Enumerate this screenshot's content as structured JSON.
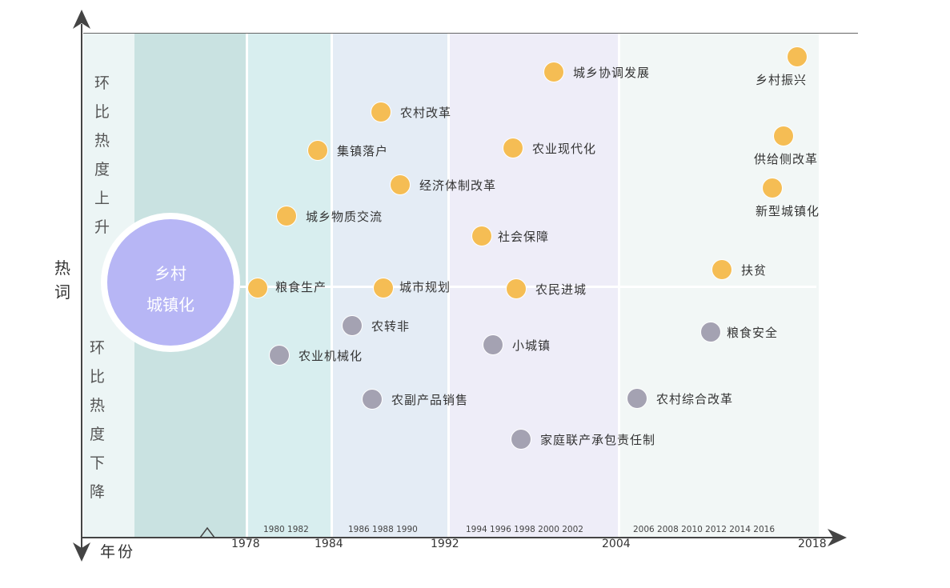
{
  "y_axis": {
    "upper_label": [
      "环",
      "比",
      "热",
      "度",
      "上",
      "升"
    ],
    "lower_label": [
      "环",
      "比",
      "热",
      "度",
      "下",
      "降"
    ],
    "name": [
      "热",
      "词"
    ]
  },
  "x_axis": {
    "name": "年份",
    "major_ticks": [
      "1978",
      "1984",
      "1992",
      "2004",
      "2018"
    ],
    "minor_ticks": [
      "1980 1982",
      "1986 1988 1990",
      "1994 1996 1998 2000 2002",
      "2006 2008 2010 2012 2014 2016"
    ]
  },
  "center_topic": [
    "乡村",
    "城镇化"
  ],
  "colors": {
    "rising": "#f5bd54",
    "falling": "#a4a2b2",
    "band_1": "#c9e2e1",
    "band_2": "#d8eeef",
    "band_3": "#e4ecf5",
    "band_4": "#eeedf8",
    "band_5": "#f2f7f6",
    "band_pre": "#ecf5f5"
  },
  "terms": {
    "rising": [
      {
        "id": "xcxtfz",
        "text": "城乡协调发展"
      },
      {
        "id": "xczx",
        "text": "乡村振兴"
      },
      {
        "id": "ncgg",
        "text": "农村改革"
      },
      {
        "id": "jzlh",
        "text": "集镇落户"
      },
      {
        "id": "nyxdh",
        "text": "农业现代化"
      },
      {
        "id": "gjcgg",
        "text": "供给侧改革"
      },
      {
        "id": "jjtzgg",
        "text": "经济体制改革"
      },
      {
        "id": "xxczh",
        "text": "新型城镇化"
      },
      {
        "id": "cxwzjl",
        "text": "城乡物质交流"
      },
      {
        "id": "shbz",
        "text": "社会保障"
      },
      {
        "id": "fp",
        "text": "扶贫"
      },
      {
        "id": "lssc",
        "text": "粮食生产"
      },
      {
        "id": "csgh",
        "text": "城市规划"
      },
      {
        "id": "nmjc",
        "text": "农民进城"
      }
    ],
    "falling": [
      {
        "id": "nzf",
        "text": "农转非"
      },
      {
        "id": "lsaq",
        "text": "粮食安全"
      },
      {
        "id": "xcz",
        "text": "小城镇"
      },
      {
        "id": "nyjxh",
        "text": "农业机械化"
      },
      {
        "id": "nfcpxs",
        "text": "农副产品销售"
      },
      {
        "id": "nczhgg",
        "text": "农村综合改革"
      },
      {
        "id": "jtlccbzrz",
        "text": "家庭联产承包责任制"
      }
    ]
  }
}
